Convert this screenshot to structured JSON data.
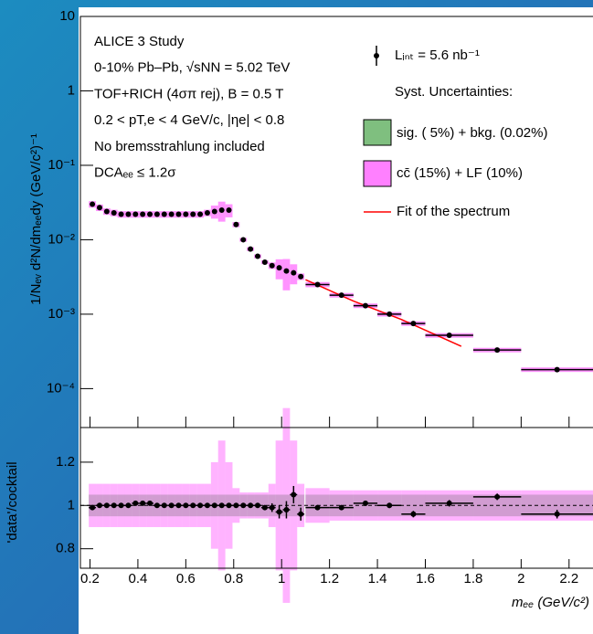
{
  "chart_data": [
    {
      "type": "scatter",
      "y_label": "1/Nₑᵥ d²N/dmₑₑdy (GeV/c²)⁻¹",
      "annotations": [
        "ALICE 3 Study",
        "0-10% Pb–Pb, √sNN = 5.02 TeV",
        "TOF+RICH (4σπ rej), B = 0.5 T",
        "0.2 < pT,e < 4 GeV/c, |ηe| < 0.8",
        "No bremsstrahlung included",
        "DCAₑₑ ≤ 1.2σ"
      ],
      "legend_title": "Syst. Uncertainties:",
      "log_y": true,
      "xlim": [
        0.16,
        2.3
      ],
      "ylim": [
        3e-05,
        10
      ],
      "yticks": [
        {
          "value": 0.0001,
          "label": "10⁻⁴"
        },
        {
          "value": 0.001,
          "label": "10⁻³"
        },
        {
          "value": 0.01,
          "label": "10⁻²"
        },
        {
          "value": 0.1,
          "label": "10⁻¹"
        },
        1,
        10
      ],
      "x": [
        0.21,
        0.24,
        0.27,
        0.3,
        0.33,
        0.36,
        0.39,
        0.42,
        0.45,
        0.48,
        0.51,
        0.54,
        0.57,
        0.6,
        0.63,
        0.66,
        0.69,
        0.72,
        0.75,
        0.78,
        0.81,
        0.84,
        0.87,
        0.9,
        0.93,
        0.96,
        0.99,
        1.02,
        1.05,
        1.08,
        1.15,
        1.25,
        1.35,
        1.45,
        1.55,
        1.7,
        1.9,
        2.15
      ],
      "xerr": [
        0.015,
        0.015,
        0.015,
        0.015,
        0.015,
        0.015,
        0.015,
        0.015,
        0.015,
        0.015,
        0.015,
        0.015,
        0.015,
        0.015,
        0.015,
        0.015,
        0.015,
        0.015,
        0.015,
        0.015,
        0.015,
        0.015,
        0.015,
        0.015,
        0.015,
        0.015,
        0.015,
        0.015,
        0.015,
        0.015,
        0.05,
        0.05,
        0.05,
        0.05,
        0.05,
        0.1,
        0.1,
        0.15
      ],
      "series": [
        {
          "name": "Lᵢₙₜ = 5.6 nb⁻¹",
          "color": "#000000",
          "values": [
            0.03,
            0.027,
            0.024,
            0.023,
            0.022,
            0.022,
            0.022,
            0.022,
            0.022,
            0.022,
            0.022,
            0.022,
            0.022,
            0.022,
            0.022,
            0.022,
            0.023,
            0.024,
            0.025,
            0.025,
            0.016,
            0.01,
            0.0075,
            0.006,
            0.005,
            0.0045,
            0.0042,
            0.0038,
            0.0036,
            0.0032,
            0.0025,
            0.0018,
            0.0013,
            0.001,
            0.00075,
            0.00052,
            0.00033,
            0.00018
          ]
        },
        {
          "name": "Fit of the spectrum",
          "color": "#ff0000",
          "x": [
            1.1,
            1.3,
            1.5,
            1.75
          ],
          "values": [
            0.0029,
            0.0015,
            0.00085,
            0.00037
          ]
        }
      ]
    },
    {
      "type": "scatter",
      "x_label": "mₑₑ (GeV/c²)",
      "y_label": "'data'/cocktail",
      "ylim": [
        0.71,
        1.36
      ],
      "yticks": [
        0.8,
        1,
        1.2
      ],
      "xticks": [
        0.2,
        0.4,
        0.6,
        0.8,
        1,
        1.2,
        1.4,
        1.6,
        1.8,
        2,
        2.2
      ],
      "hline": 1,
      "values": [
        0.99,
        1.0,
        1.0,
        1.0,
        1.0,
        1.0,
        1.01,
        1.01,
        1.01,
        1.0,
        1.0,
        1.0,
        1.0,
        1.0,
        1.0,
        1.0,
        1.0,
        1.0,
        1.0,
        1.0,
        1.0,
        1.0,
        1.0,
        1.0,
        0.99,
        0.99,
        0.97,
        0.98,
        1.05,
        0.96,
        0.99,
        0.99,
        1.01,
        1.0,
        0.96,
        1.01,
        1.04,
        0.96
      ],
      "errors": [
        0.01,
        0.01,
        0.01,
        0.01,
        0.01,
        0.01,
        0.01,
        0.01,
        0.01,
        0.01,
        0.01,
        0.01,
        0.01,
        0.01,
        0.01,
        0.01,
        0.01,
        0.01,
        0.01,
        0.01,
        0.01,
        0.01,
        0.01,
        0.01,
        0.01,
        0.02,
        0.03,
        0.04,
        0.04,
        0.03,
        0.01,
        0.01,
        0.012,
        0.012,
        0.015,
        0.015,
        0.015,
        0.02
      ],
      "series": [
        {
          "name": "sig. ( 5%) + bkg. (0.02%)",
          "color": "#7fbf7f",
          "values": [
            0.05,
            0.05,
            0.05,
            0.05,
            0.05,
            0.05,
            0.05,
            0.05,
            0.05,
            0.05,
            0.05,
            0.05,
            0.05,
            0.05,
            0.05,
            0.05,
            0.05,
            0.05,
            0.05,
            0.05,
            0.05,
            0.05,
            0.05,
            0.05,
            0.05,
            0.05,
            0.05,
            0.05,
            0.05,
            0.05,
            0.05,
            0.05,
            0.05,
            0.05,
            0.05,
            0.05,
            0.05,
            0.05
          ]
        },
        {
          "name": "cc̄ (15%) + LF (10%)",
          "color": "#ff80ff",
          "values": [
            0.1,
            0.1,
            0.1,
            0.1,
            0.1,
            0.1,
            0.1,
            0.1,
            0.1,
            0.1,
            0.1,
            0.1,
            0.1,
            0.1,
            0.1,
            0.1,
            0.1,
            0.2,
            0.3,
            0.2,
            0.08,
            0.06,
            0.06,
            0.06,
            0.06,
            0.1,
            0.3,
            0.45,
            0.3,
            0.1,
            0.08,
            0.07,
            0.07,
            0.07,
            0.07,
            0.07,
            0.07,
            0.07
          ]
        }
      ]
    }
  ]
}
